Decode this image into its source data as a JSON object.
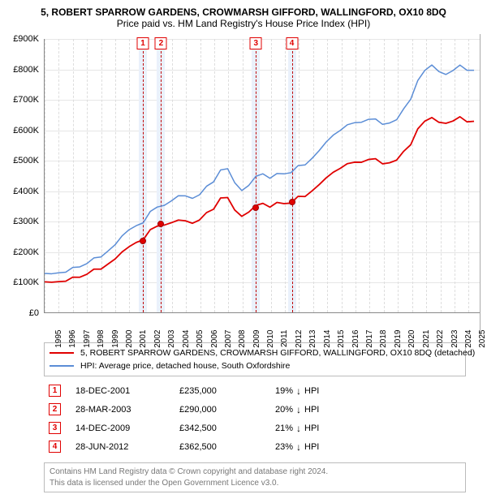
{
  "title": {
    "line1": "5, ROBERT SPARROW GARDENS, CROWMARSH GIFFORD, WALLINGFORD, OX10 8DQ",
    "line2": "Price paid vs. HM Land Registry's House Price Index (HPI)"
  },
  "chart": {
    "type": "line",
    "xlim": [
      1995,
      2025.9
    ],
    "ylim": [
      0,
      900000
    ],
    "ytick_step": 100000,
    "y_fmt_prefix": "£",
    "y_fmt_suffix": "K",
    "y_divisor": 1000,
    "x_years": [
      1995,
      1996,
      1997,
      1998,
      1999,
      2000,
      2001,
      2002,
      2003,
      2004,
      2005,
      2006,
      2007,
      2008,
      2009,
      2010,
      2011,
      2012,
      2013,
      2014,
      2015,
      2016,
      2017,
      2018,
      2019,
      2020,
      2021,
      2022,
      2023,
      2024,
      2025
    ],
    "grid_color": "#e6e6e6",
    "background_color": "#ffffff",
    "series": [
      {
        "id": "hpi",
        "label": "HPI: Average price, detached house, South Oxfordshire",
        "color": "#5b8dd6",
        "width": 1.5,
        "jitter": 0.02,
        "data": [
          [
            1995.0,
            130000
          ],
          [
            1995.5,
            132000
          ],
          [
            1996.0,
            135000
          ],
          [
            1996.5,
            140000
          ],
          [
            1997.0,
            148000
          ],
          [
            1997.5,
            156000
          ],
          [
            1998.0,
            165000
          ],
          [
            1998.5,
            175000
          ],
          [
            1999.0,
            188000
          ],
          [
            1999.5,
            205000
          ],
          [
            2000.0,
            225000
          ],
          [
            2000.5,
            248000
          ],
          [
            2001.0,
            268000
          ],
          [
            2001.5,
            280000
          ],
          [
            2002.0,
            300000
          ],
          [
            2002.5,
            325000
          ],
          [
            2003.0,
            348000
          ],
          [
            2003.5,
            360000
          ],
          [
            2004.0,
            372000
          ],
          [
            2004.5,
            380000
          ],
          [
            2005.0,
            380000
          ],
          [
            2005.5,
            382000
          ],
          [
            2006.0,
            395000
          ],
          [
            2006.5,
            415000
          ],
          [
            2007.0,
            438000
          ],
          [
            2007.5,
            462000
          ],
          [
            2008.0,
            465000
          ],
          [
            2008.5,
            430000
          ],
          [
            2009.0,
            400000
          ],
          [
            2009.5,
            420000
          ],
          [
            2010.0,
            448000
          ],
          [
            2010.5,
            455000
          ],
          [
            2011.0,
            445000
          ],
          [
            2011.5,
            450000
          ],
          [
            2012.0,
            460000
          ],
          [
            2012.5,
            468000
          ],
          [
            2013.0,
            475000
          ],
          [
            2013.5,
            492000
          ],
          [
            2014.0,
            515000
          ],
          [
            2014.5,
            540000
          ],
          [
            2015.0,
            560000
          ],
          [
            2015.5,
            578000
          ],
          [
            2016.0,
            595000
          ],
          [
            2016.5,
            610000
          ],
          [
            2017.0,
            622000
          ],
          [
            2017.5,
            630000
          ],
          [
            2018.0,
            632000
          ],
          [
            2018.5,
            628000
          ],
          [
            2019.0,
            625000
          ],
          [
            2019.5,
            628000
          ],
          [
            2020.0,
            638000
          ],
          [
            2020.5,
            665000
          ],
          [
            2021.0,
            710000
          ],
          [
            2021.5,
            755000
          ],
          [
            2022.0,
            795000
          ],
          [
            2022.5,
            815000
          ],
          [
            2023.0,
            795000
          ],
          [
            2023.5,
            775000
          ],
          [
            2024.0,
            788000
          ],
          [
            2024.5,
            805000
          ],
          [
            2025.0,
            800000
          ],
          [
            2025.5,
            790000
          ]
        ]
      },
      {
        "id": "property",
        "label": "5, ROBERT SPARROW GARDENS, CROWMARSH GIFFORD, WALLINGFORD, OX10 8DQ (detached)",
        "color": "#e00000",
        "width": 1.8,
        "jitter": 0.02,
        "data": [
          [
            1995.0,
            102000
          ],
          [
            1995.5,
            104000
          ],
          [
            1996.0,
            106000
          ],
          [
            1996.5,
            110000
          ],
          [
            1997.0,
            116000
          ],
          [
            1997.5,
            122000
          ],
          [
            1998.0,
            130000
          ],
          [
            1998.5,
            138000
          ],
          [
            1999.0,
            148000
          ],
          [
            1999.5,
            162000
          ],
          [
            2000.0,
            178000
          ],
          [
            2000.5,
            195000
          ],
          [
            2001.0,
            212000
          ],
          [
            2001.5,
            225000
          ],
          [
            2002.0,
            244000
          ],
          [
            2002.5,
            265000
          ],
          [
            2003.0,
            285000
          ],
          [
            2003.5,
            295000
          ],
          [
            2004.0,
            300000
          ],
          [
            2004.5,
            300000
          ],
          [
            2005.0,
            298000
          ],
          [
            2005.5,
            300000
          ],
          [
            2006.0,
            312000
          ],
          [
            2006.5,
            328000
          ],
          [
            2007.0,
            348000
          ],
          [
            2007.5,
            370000
          ],
          [
            2008.0,
            370000
          ],
          [
            2008.5,
            340000
          ],
          [
            2009.0,
            315000
          ],
          [
            2009.5,
            332000
          ],
          [
            2010.0,
            352000
          ],
          [
            2010.5,
            358000
          ],
          [
            2011.0,
            350000
          ],
          [
            2011.5,
            355000
          ],
          [
            2012.0,
            362000
          ],
          [
            2012.5,
            368000
          ],
          [
            2013.0,
            374000
          ],
          [
            2013.5,
            388000
          ],
          [
            2014.0,
            408000
          ],
          [
            2014.5,
            428000
          ],
          [
            2015.0,
            442000
          ],
          [
            2015.5,
            456000
          ],
          [
            2016.0,
            470000
          ],
          [
            2016.5,
            482000
          ],
          [
            2017.0,
            492000
          ],
          [
            2017.5,
            498000
          ],
          [
            2018.0,
            500000
          ],
          [
            2018.5,
            497000
          ],
          [
            2019.0,
            495000
          ],
          [
            2019.5,
            497000
          ],
          [
            2020.0,
            505000
          ],
          [
            2020.5,
            525000
          ],
          [
            2021.0,
            560000
          ],
          [
            2021.5,
            596000
          ],
          [
            2022.0,
            628000
          ],
          [
            2022.5,
            642000
          ],
          [
            2023.0,
            628000
          ],
          [
            2023.5,
            614000
          ],
          [
            2024.0,
            622000
          ],
          [
            2024.5,
            635000
          ],
          [
            2025.0,
            630000
          ],
          [
            2025.5,
            622000
          ]
        ]
      }
    ],
    "sale_markers": [
      {
        "n": "1",
        "x": 2001.95,
        "price": 235000
      },
      {
        "n": "2",
        "x": 2003.24,
        "price": 290000
      },
      {
        "n": "3",
        "x": 2009.95,
        "price": 342500
      },
      {
        "n": "4",
        "x": 2012.49,
        "price": 362500
      }
    ],
    "marker_box_color": "#e00000",
    "marker_line_color": "#c00000",
    "marker_band_color": "#eaf1fb"
  },
  "legend": {
    "rows": [
      {
        "color": "#e00000",
        "text": "5, ROBERT SPARROW GARDENS, CROWMARSH GIFFORD, WALLINGFORD, OX10 8DQ (detached)"
      },
      {
        "color": "#5b8dd6",
        "text": "HPI: Average price, detached house, South Oxfordshire"
      }
    ]
  },
  "sales": [
    {
      "n": "1",
      "date": "18-DEC-2001",
      "price": "£235,000",
      "delta": "19%",
      "arrow": "↓",
      "suffix": "HPI"
    },
    {
      "n": "2",
      "date": "28-MAR-2003",
      "price": "£290,000",
      "delta": "20%",
      "arrow": "↓",
      "suffix": "HPI"
    },
    {
      "n": "3",
      "date": "14-DEC-2009",
      "price": "£342,500",
      "delta": "21%",
      "arrow": "↓",
      "suffix": "HPI"
    },
    {
      "n": "4",
      "date": "28-JUN-2012",
      "price": "£362,500",
      "delta": "23%",
      "arrow": "↓",
      "suffix": "HPI"
    }
  ],
  "footer": {
    "line1": "Contains HM Land Registry data © Crown copyright and database right 2024.",
    "line2": "This data is licensed under the Open Government Licence v3.0."
  }
}
